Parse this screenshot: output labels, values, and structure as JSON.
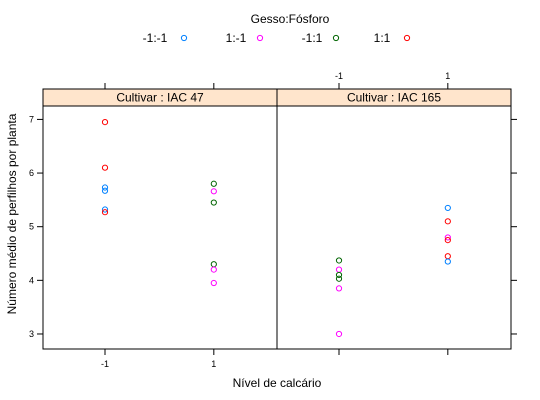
{
  "chart_data": {
    "type": "scatter",
    "legend": {
      "title": "Gesso:Fósforo",
      "placement": "top",
      "entries": [
        {
          "label": "-1:-1",
          "color": "#0080ff"
        },
        {
          "label": "1:-1",
          "color": "#ff00ff"
        },
        {
          "label": "-1:1",
          "color": "#006400"
        },
        {
          "label": "1:1",
          "color": "#ff0000"
        }
      ]
    },
    "xlabel": "Nível de calcário",
    "ylabel": "Número médio de perfilhos por planta",
    "x_ticks": [
      -1,
      1
    ],
    "y_ticks": [
      3,
      4,
      5,
      6,
      7
    ],
    "ylim": [
      2.72,
      7.25
    ],
    "strip_color": "#ffe5cc",
    "panels": [
      {
        "strip": "Cultivar : IAC 47",
        "points": [
          {
            "x": -1,
            "y": 6.95,
            "group": "1:1"
          },
          {
            "x": -1,
            "y": 6.1,
            "group": "1:1"
          },
          {
            "x": -1,
            "y": 5.73,
            "group": "-1:-1"
          },
          {
            "x": -1,
            "y": 5.67,
            "group": "-1:-1"
          },
          {
            "x": -1,
            "y": 5.32,
            "group": "-1:-1"
          },
          {
            "x": -1,
            "y": 5.27,
            "group": "1:1"
          },
          {
            "x": 1,
            "y": 5.8,
            "group": "-1:1"
          },
          {
            "x": 1,
            "y": 5.66,
            "group": "1:-1"
          },
          {
            "x": 1,
            "y": 5.45,
            "group": "-1:1"
          },
          {
            "x": 1,
            "y": 4.3,
            "group": "-1:1"
          },
          {
            "x": 1,
            "y": 4.2,
            "group": "1:-1"
          },
          {
            "x": 1,
            "y": 3.95,
            "group": "1:-1"
          }
        ]
      },
      {
        "strip": "Cultivar : IAC 165",
        "points": [
          {
            "x": -1,
            "y": 4.37,
            "group": "-1:1"
          },
          {
            "x": -1,
            "y": 4.2,
            "group": "1:-1"
          },
          {
            "x": -1,
            "y": 4.1,
            "group": "-1:1"
          },
          {
            "x": -1,
            "y": 4.03,
            "group": "-1:1"
          },
          {
            "x": -1,
            "y": 3.85,
            "group": "1:-1"
          },
          {
            "x": -1,
            "y": 3.0,
            "group": "1:-1"
          },
          {
            "x": 1,
            "y": 5.35,
            "group": "-1:-1"
          },
          {
            "x": 1,
            "y": 5.1,
            "group": "1:1"
          },
          {
            "x": 1,
            "y": 4.8,
            "group": "1:-1"
          },
          {
            "x": 1,
            "y": 4.75,
            "group": "1:1"
          },
          {
            "x": 1,
            "y": 4.45,
            "group": "1:1"
          },
          {
            "x": 1,
            "y": 4.35,
            "group": "-1:-1"
          }
        ]
      }
    ]
  }
}
